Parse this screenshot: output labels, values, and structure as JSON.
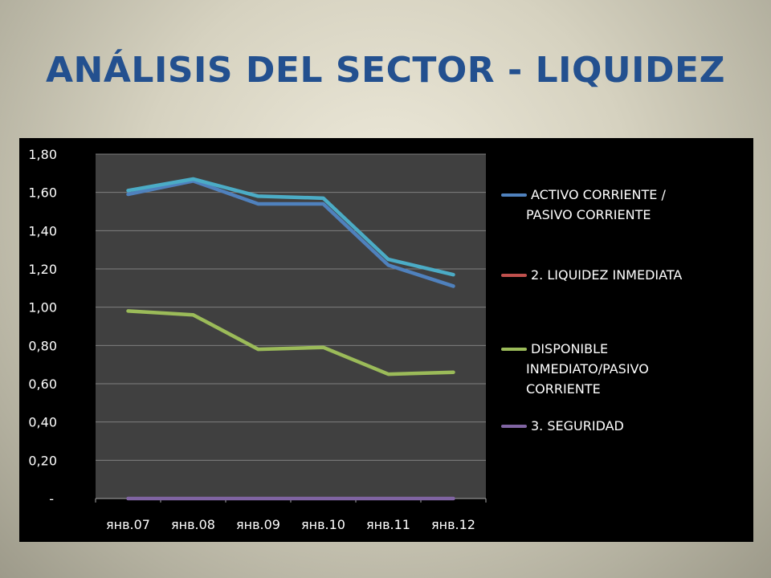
{
  "slide": {
    "title": "ANÁLISIS DEL SECTOR  - LIQUIDEZ",
    "title_color": "#23508f"
  },
  "chart_data": {
    "type": "line",
    "categories": [
      "янв.07",
      "янв.08",
      "янв.09",
      "янв.10",
      "янв.11",
      "янв.12"
    ],
    "y_tick_labels": [
      "-",
      "0,20",
      "0,40",
      "0,60",
      "0,80",
      "1,00",
      "1,20",
      "1,40",
      "1,60",
      "1,80"
    ],
    "ylim": [
      0,
      1.8
    ],
    "grid": true,
    "legend_position": "right",
    "plot_background": "#404040",
    "series": [
      {
        "name": "ACTIVO CORRIENTE / PASIVO CORRIENTE",
        "legend_lines": [
          "ACTIVO CORRIENTE /",
          "PASIVO CORRIENTE"
        ],
        "color": "#4f81bd",
        "values": [
          1.59,
          1.66,
          1.54,
          1.54,
          1.22,
          1.11
        ]
      },
      {
        "name": "2. LIQUIDEZ INMEDIATA",
        "legend_lines": [
          "2. LIQUIDEZ INMEDIATA"
        ],
        "color": "#c0504d",
        "values": [
          1.61,
          1.67,
          1.58,
          1.57,
          1.25,
          1.17
        ],
        "display_color": "#4bacc6"
      },
      {
        "name": "DISPONIBLE INMEDIATO/PASIVO CORRIENTE",
        "legend_lines": [
          "DISPONIBLE",
          "INMEDIATO/PASIVO",
          "CORRIENTE"
        ],
        "color": "#9bbb59",
        "values": [
          0.98,
          0.96,
          0.78,
          0.79,
          0.65,
          0.66
        ]
      },
      {
        "name": "3. SEGURIDAD",
        "legend_lines": [
          "3. SEGURIDAD"
        ],
        "color": "#8064a2",
        "values": [
          0,
          0,
          0,
          0,
          0,
          0
        ]
      }
    ]
  }
}
